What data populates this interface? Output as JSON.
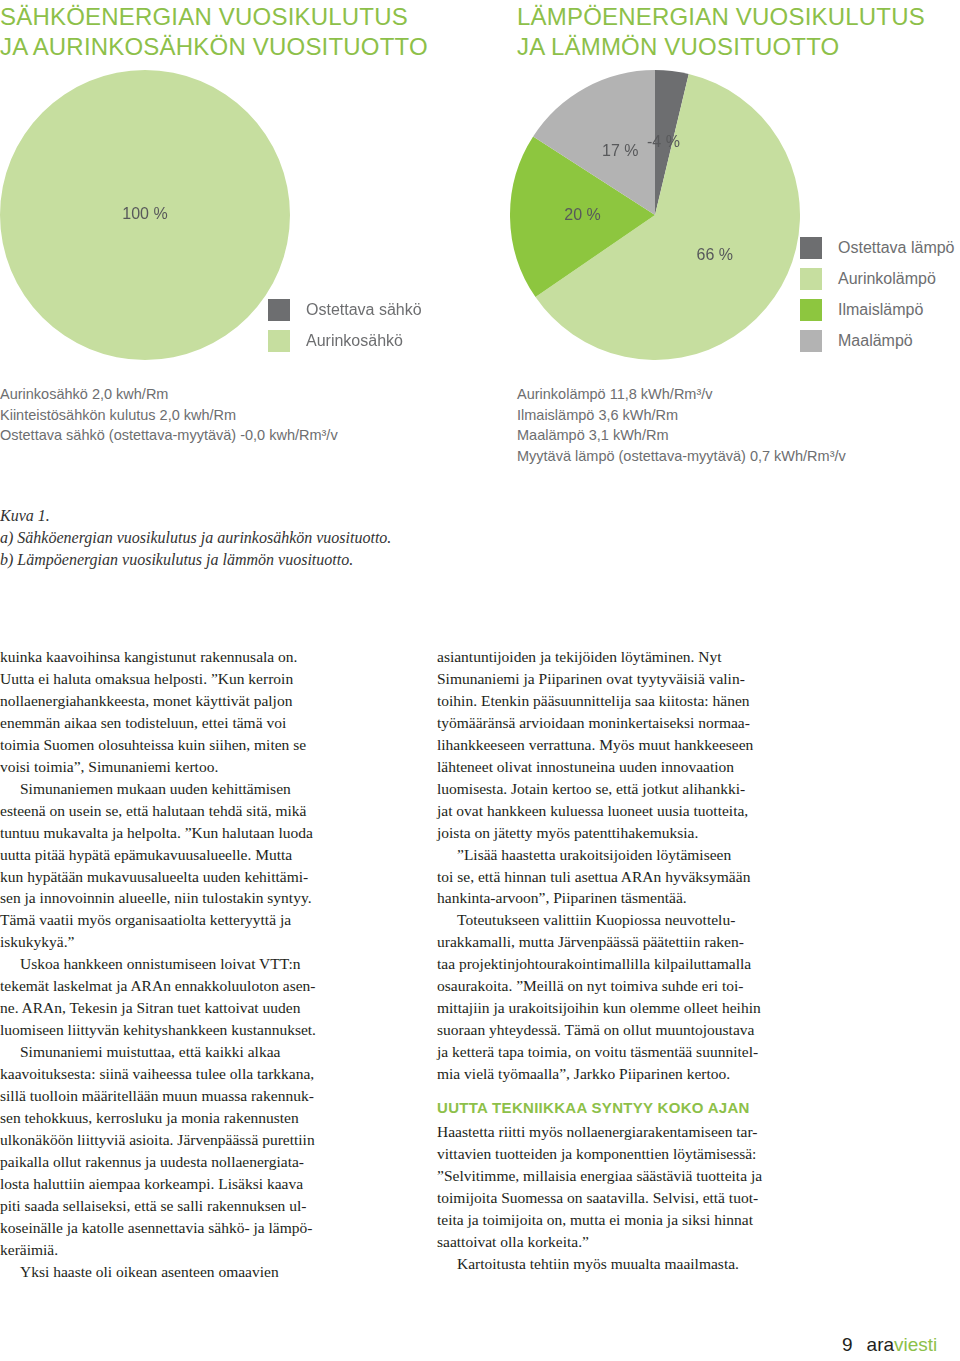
{
  "chart_data": [
    {
      "type": "pie",
      "title": [
        "SÄHKÖENERGIAN VUOSIKULUTUS",
        "JA AURINKOSÄHKÖN VUOSITUOTTO"
      ],
      "categories": [
        "Ostettava sähkö",
        "Aurinkosähkö"
      ],
      "values": [
        0,
        100
      ],
      "colors": [
        "#6d6e70",
        "#c6de9f"
      ],
      "data_labels": true,
      "value_labels": [
        null,
        "100 %"
      ],
      "legend": "right",
      "annotations": [
        "Aurinkosähkö 2,0 kwh/Rm",
        "Kiinteistösähkön kulutus 2,0 kwh/Rm",
        "Ostettava sähkö (ostettava-myytävä) -0,0 kwh/Rm³/v"
      ]
    },
    {
      "type": "pie",
      "title": [
        "LÄMPÖENERGIAN VUOSIKULUTUS",
        "JA LÄMMÖN VUOSITUOTTO"
      ],
      "categories": [
        "Ostettava lämpö",
        "Aurinkolämpö",
        "Ilmaislämpö",
        "Maalämpö"
      ],
      "values": [
        -4,
        66,
        20,
        17
      ],
      "colors": [
        "#6d6e70",
        "#c6de9f",
        "#8dc63f",
        "#b3b3b3"
      ],
      "data_labels": true,
      "value_labels": [
        "-4 %",
        "66 %",
        "20 %",
        "17 %"
      ],
      "legend": "right",
      "annotations": [
        "Aurinkolämpö 11,8 kWh/Rm³/v",
        "Ilmaislämpö 3,6 kWh/Rm",
        "Maalämpö 3,1 kWh/Rm",
        "Myytävä lämpö (ostettava-myytävä) 0,7 kWh/Rm³/v"
      ]
    }
  ],
  "document": {
    "caption": [
      "Kuva 1.",
      "a) Sähköenergian vuosikulutus ja aurinkosähkön vuosituotto.",
      "b) Lämpöenergian vuosikulutus ja lämmön vuosituotto."
    ],
    "columns": [
      [
        {
          "lines": [
            "kuinka kaavoihinsa kangistunut rakennusala on.",
            "Uutta ei haluta omaksua helposti. ”Kun kerroin",
            "nollaenergiahankkeesta, monet käyttivät paljon",
            "enemmän aikaa sen todisteluun, ettei tämä voi",
            "toimia Suomen olosuhteissa kuin siihen, miten se",
            "voisi toimia”, Simunaniemi kertoo."
          ]
        },
        {
          "lines": [
            "Simunaniemen mukaan uuden kehittämisen",
            "esteenä on usein se, että halutaan tehdä sitä, mikä",
            "tuntuu mukavalta ja helpolta. ”Kun halutaan luoda",
            "uutta pitää hypätä epämukavuusalueelle. Mutta",
            "kun hypätään mukavuusalueelta uuden kehittämi-",
            "sen ja innovoinnin alueelle, niin tulostakin syntyy.",
            "Tämä vaatii myös organisaatiolta ketteryyttä ja",
            "iskukykyä.”"
          ]
        },
        {
          "lines": [
            "Uskoa hankkeen onnistumiseen loivat VTT:n",
            "tekemät laskelmat ja ARAn ennakkoluuloton asen-",
            "ne. ARAn, Tekesin ja Sitran tuet kattoivat uuden",
            "luomiseen liittyvän kehityshankkeen kustannukset."
          ]
        },
        {
          "lines": [
            "Simunaniemi muistuttaa, että kaikki alkaa",
            "kaavoituksesta: siinä vaiheessa tulee olla tarkkana,",
            "sillä tuolloin määritellään muun muassa rakennuk-",
            "sen tehokkuus, kerrosluku ja monia rakennusten",
            "ulkonäköön liittyviä asioita. Järvenpäässä purettiin",
            "paikalla ollut rakennus ja uudesta nollaenergiata-",
            "losta haluttiin aiempaa korkeampi. Lisäksi kaava",
            "piti saada sellaiseksi, että se salli rakennuksen ul-",
            "koseinälle ja katolle asennettavia sähkö- ja lämpö-",
            "keräimiä."
          ]
        },
        {
          "lines": [
            "Yksi haaste oli oikean asenteen omaavien"
          ]
        }
      ],
      [
        {
          "lines": [
            "asiantuntijoiden ja tekijöiden löytäminen. Nyt",
            "Simunaniemi ja Piiparinen ovat tyytyväisiä valin-",
            "toihin. Etenkin pääsuunnittelija saa kiitosta: hänen",
            "työmääränsä arvioidaan moninkertaiseksi normaa-",
            "lihankkeeseen verrattuna. Myös muut hankkeeseen",
            "lähteneet olivat innostuneina uuden innovaation",
            "luomisesta. Jotain kertoo se, että jotkut alihankki-",
            "jat ovat hankkeen kuluessa luoneet uusia tuotteita,",
            "joista on jätetty myös patenttihakemuksia."
          ]
        },
        {
          "lines": [
            "”Lisää haastetta urakoitsijoiden löytämiseen",
            "toi se, että hinnan tuli asettua ARAn hyväksymään",
            "hankinta-arvoon”, Piiparinen täsmentää."
          ]
        },
        {
          "lines": [
            "Toteutukseen valittiin Kuopiossa neuvottelu-",
            "urakkamalli, mutta Järvenpäässä päätettiin raken-",
            "taa projektinjohtourakointimallilla kilpailuttamalla",
            "osaurakoita. ”Meillä on nyt toimiva suhde eri toi-",
            "mittajiin ja urakoitsijoihin kun olemme olleet heihin",
            "suoraan yhteydessä. Tämä on ollut muuntojoustava",
            "ja ketterä tapa toimia, on voitu täsmentää suunnitel-",
            "mia vielä työmaalla”, Jarkko Piiparinen kertoo."
          ]
        },
        {
          "heading": "UUTTA TEKNIIKKAA SYNTYY KOKO AJAN"
        },
        {
          "lines": [
            "Haastetta riitti myös nollaenergiarakentamiseen tar-",
            "vittavien tuotteiden ja komponenttien löytämisessä:",
            "”Selvitimme, millaisia energiaa säästäviä tuotteita ja",
            "toimijoita Suomessa on saatavilla. Selvisi, että tuot-",
            "teita ja toimijoita on, mutta ei monia ja siksi hinnat",
            "saattoivat olla korkeita.”"
          ]
        },
        {
          "lines": [
            "Kartoitusta tehtiin myös muualta maailmasta."
          ]
        }
      ]
    ],
    "footer": {
      "page": "9",
      "brand": [
        "ara",
        "viesti"
      ]
    }
  }
}
